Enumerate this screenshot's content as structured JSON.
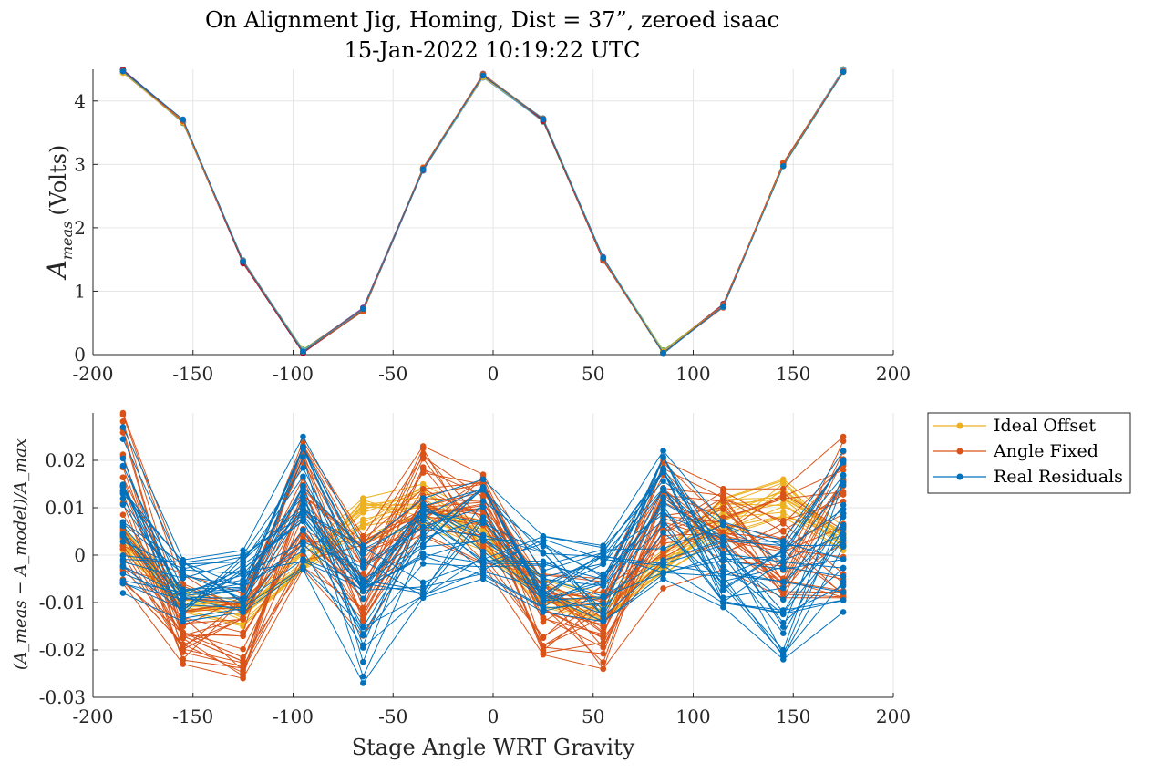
{
  "title": {
    "line1": "On Alignment Jig, Homing, Dist = 37”, zeroed isaac",
    "line2": "15-Jan-2022 10:19:22 UTC"
  },
  "colors": {
    "ideal_offset": "#EDB120",
    "angle_fixed": "#D95319",
    "real_residuals": "#0072BD",
    "grid": "#e6e6e6",
    "axis": "#262626"
  },
  "chart_data": [
    {
      "type": "line",
      "ylabel_main": "A",
      "ylabel_sub": "meas",
      "ylabel_unit": "(Volts)",
      "xlim": [
        -200,
        200
      ],
      "ylim": [
        0,
        4.5
      ],
      "xticks": [
        -200,
        -150,
        -100,
        -50,
        0,
        50,
        100,
        150,
        200
      ],
      "yticks": [
        0,
        1,
        2,
        3,
        4
      ],
      "grid": true,
      "x": [
        -185,
        -155,
        -125,
        -95,
        -65,
        -35,
        -5,
        25,
        55,
        85,
        115,
        145,
        175
      ],
      "y": [
        4.47,
        3.68,
        1.46,
        0.05,
        0.71,
        2.92,
        4.4,
        3.7,
        1.51,
        0.04,
        0.77,
        3.0,
        4.48
      ]
    },
    {
      "type": "line",
      "xlabel": "Stage Angle WRT Gravity",
      "ylabel": "(A_meas − A_model)/A_max",
      "xlim": [
        -200,
        200
      ],
      "ylim": [
        -0.03,
        0.03
      ],
      "xticks": [
        -200,
        -150,
        -100,
        -50,
        0,
        50,
        100,
        150,
        200
      ],
      "yticks": [
        -0.03,
        -0.02,
        -0.01,
        0,
        0.01,
        0.02
      ],
      "ytick_labels": [
        "-0.03",
        "-0.02",
        "-0.01",
        "0",
        "0.01",
        "0.02"
      ],
      "grid": true,
      "legend": "outside right top",
      "x": [
        -185,
        -155,
        -125,
        -95,
        -65,
        -35,
        -5,
        25,
        55,
        85,
        115,
        145,
        175
      ],
      "series": [
        {
          "name": "Ideal Offset",
          "color": "#EDB120",
          "center": [
            0.003,
            -0.01,
            -0.012,
            -0.002,
            0.007,
            0.011,
            0.004,
            -0.008,
            -0.011,
            -0.002,
            0.009,
            0.012,
            0.003
          ],
          "min": [
            0.001,
            -0.012,
            -0.015,
            -0.003,
            0.003,
            0.006,
            0.001,
            -0.011,
            -0.014,
            -0.004,
            0.004,
            0.008,
            0.001
          ],
          "max": [
            0.006,
            -0.007,
            -0.01,
            0.001,
            0.012,
            0.015,
            0.008,
            -0.005,
            -0.008,
            0.001,
            0.012,
            0.016,
            0.006
          ]
        },
        {
          "name": "Angle Fixed",
          "color": "#D95319",
          "center": [
            0.01,
            -0.016,
            -0.018,
            0.01,
            -0.005,
            0.012,
            0.008,
            -0.012,
            -0.014,
            0.006,
            0.005,
            0.001,
            0.01
          ],
          "min": [
            -0.006,
            -0.023,
            -0.026,
            -0.003,
            -0.017,
            0.004,
            -0.002,
            -0.021,
            -0.024,
            -0.007,
            -0.003,
            -0.009,
            -0.009
          ],
          "max": [
            0.03,
            -0.004,
            -0.008,
            0.024,
            0.004,
            0.023,
            0.017,
            -0.004,
            -0.005,
            0.02,
            0.014,
            0.014,
            0.025
          ]
        },
        {
          "name": "Real Residuals",
          "color": "#0072BD",
          "center": [
            0.008,
            -0.008,
            -0.008,
            0.012,
            -0.008,
            0.004,
            0.004,
            -0.004,
            -0.005,
            0.01,
            -0.004,
            -0.006,
            0.01
          ],
          "min": [
            -0.008,
            -0.014,
            -0.012,
            -0.003,
            -0.027,
            -0.009,
            -0.005,
            -0.012,
            -0.014,
            -0.005,
            -0.011,
            -0.022,
            -0.012
          ],
          "max": [
            0.027,
            -0.001,
            0.001,
            0.025,
            0.002,
            0.012,
            0.016,
            0.004,
            0.002,
            0.022,
            0.007,
            0.003,
            0.022
          ]
        }
      ]
    }
  ]
}
